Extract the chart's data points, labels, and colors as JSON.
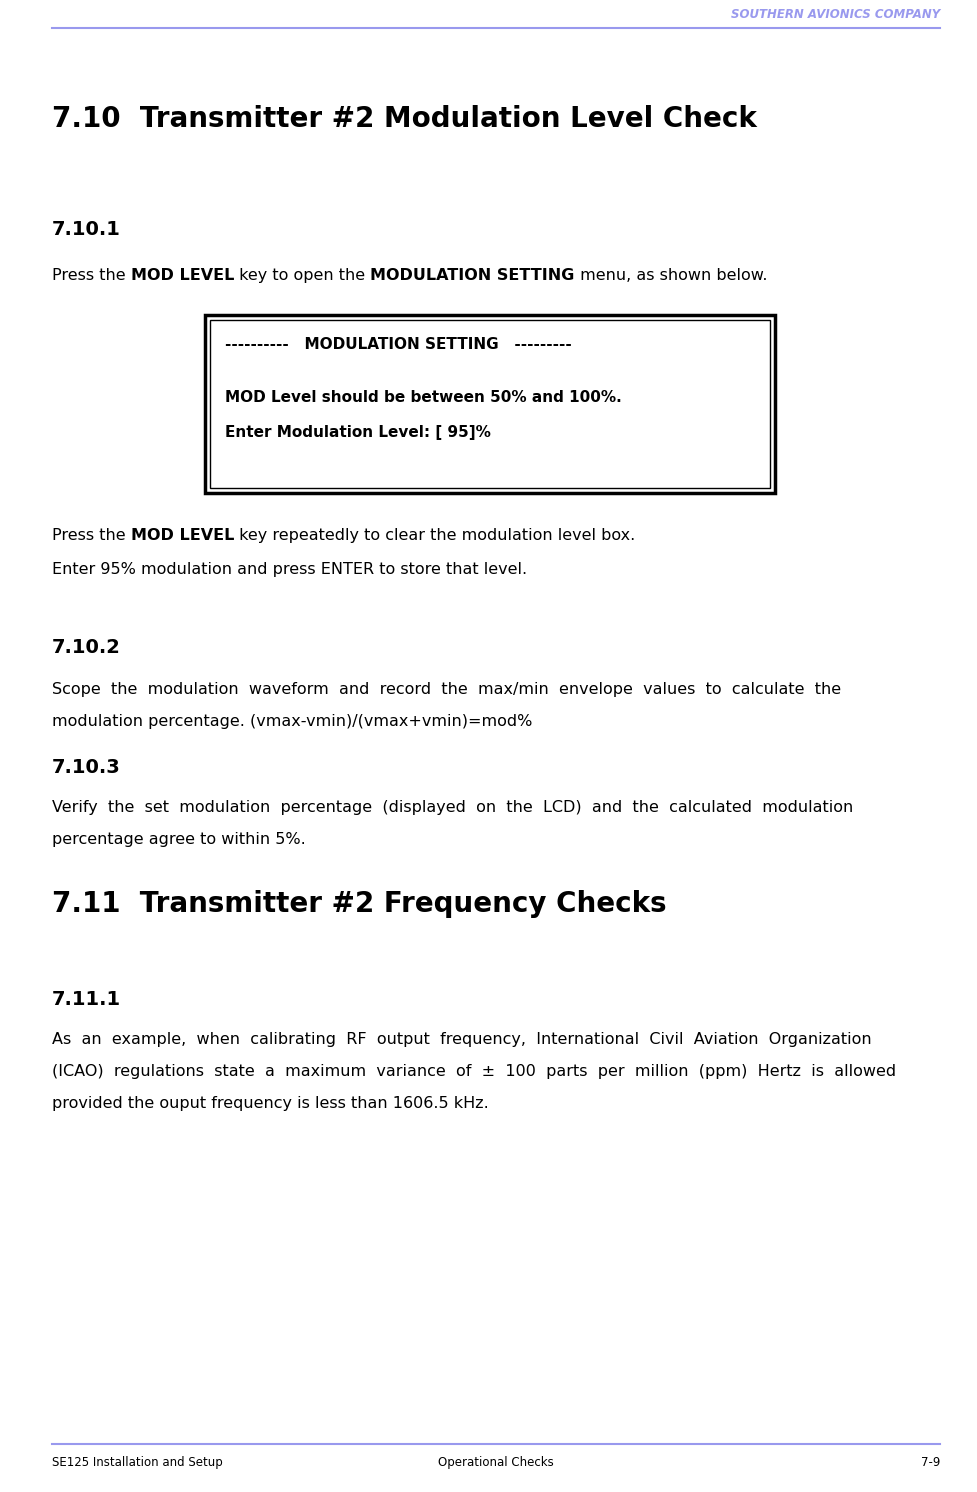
{
  "header_text": "SOUTHERN AVIONICS COMPANY",
  "header_color": "#9999ee",
  "header_line_color": "#9999ee",
  "footer_line_color": "#9999ee",
  "footer_left": "SE125 Installation and Setup",
  "footer_center": "Operational Checks",
  "footer_right": "7-9",
  "bg_color": "#ffffff",
  "title_710": "7.10  Transmitter #2 Modulation Level Check",
  "section_7101": "7.10.1",
  "box_line1": "----------   MODULATION SETTING   ---------",
  "box_line3": "MOD Level should be between 50% and 100%.",
  "box_line4": "Enter Modulation Level: [ 95]%",
  "para_7101c": "Enter 95% modulation and press ENTER to store that level.",
  "section_7102": "7.10.2",
  "section_7103": "7.10.3",
  "title_711": "7.11  Transmitter #2 Frequency Checks",
  "section_7111": "7.11.1",
  "text_color": "#000000",
  "page_width": 9.77,
  "page_height": 14.92,
  "dpi": 100
}
